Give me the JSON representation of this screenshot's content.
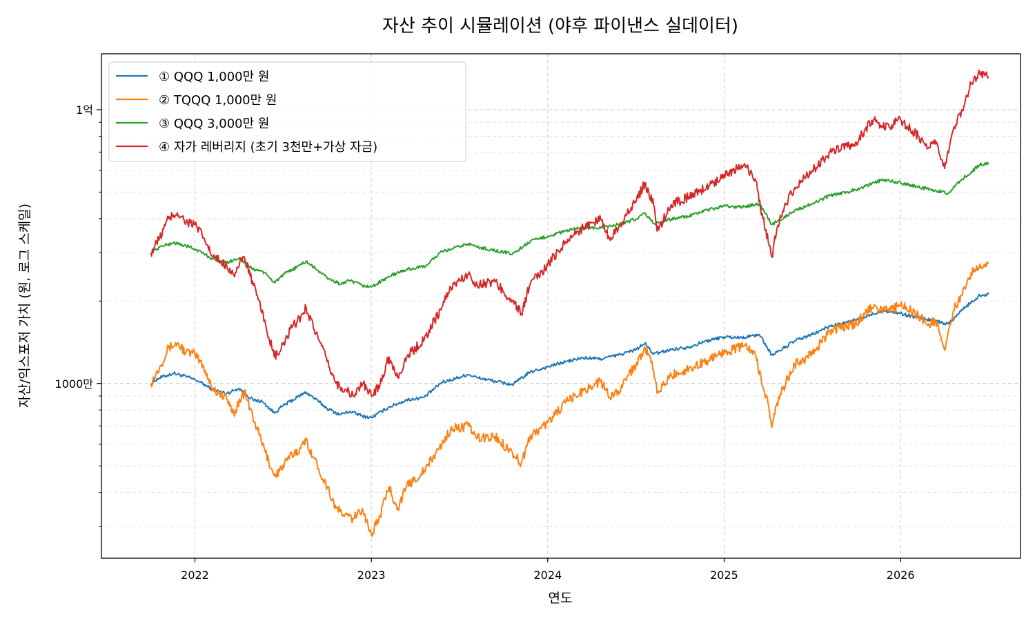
{
  "chart_data": {
    "type": "line",
    "title": "자산 추이 시뮬레이션 (야후 파이낸스 실데이터)",
    "xlabel": "연도",
    "ylabel": "자산/익스포저 가치 (원, 로그 스케일)",
    "y_scale": "log",
    "xlim": [
      2021.47,
      2026.68
    ],
    "ylim": [
      2300000,
      160000000
    ],
    "grid": true,
    "grid_style": "dashed",
    "legend_position": "top-left",
    "x_ticks": [
      {
        "value": 2022,
        "label": "2022"
      },
      {
        "value": 2023,
        "label": "2023"
      },
      {
        "value": 2024,
        "label": "2024"
      },
      {
        "value": 2025,
        "label": "2025"
      },
      {
        "value": 2026,
        "label": "2026"
      }
    ],
    "y_ticks": [
      {
        "value": 10000000,
        "label": "1000만"
      },
      {
        "value": 100000000,
        "label": "1억"
      }
    ],
    "series": [
      {
        "name": "① QQQ 1,000만 원",
        "color": "#1f77b4",
        "x": [
          2021.75,
          2021.8,
          2021.88,
          2021.95,
          2022.02,
          2022.1,
          2022.18,
          2022.25,
          2022.33,
          2022.38,
          2022.45,
          2022.5,
          2022.58,
          2022.63,
          2022.7,
          2022.75,
          2022.82,
          2022.88,
          2022.95,
          2023.0,
          2023.1,
          2023.2,
          2023.3,
          2023.4,
          2023.45,
          2023.55,
          2023.6,
          2023.7,
          2023.8,
          2023.9,
          2024.0,
          2024.1,
          2024.2,
          2024.3,
          2024.4,
          2024.5,
          2024.55,
          2024.6,
          2024.7,
          2024.8,
          2024.9,
          2025.0,
          2025.1,
          2025.2,
          2025.27,
          2025.3,
          2025.4,
          2025.5,
          2025.6,
          2025.7,
          2025.8,
          2025.9,
          2026.0,
          2026.1,
          2026.2,
          2026.27,
          2026.35,
          2026.45,
          2026.5
        ],
        "values": [
          10000000,
          10500000,
          10900000,
          10600000,
          10200000,
          9500000,
          9200000,
          9600000,
          8700000,
          8600000,
          7800000,
          8300000,
          8900000,
          9300000,
          8600000,
          8100000,
          7700000,
          7900000,
          7600000,
          7500000,
          8200000,
          8700000,
          8900000,
          10100000,
          10300000,
          10800000,
          10500000,
          10200000,
          9900000,
          11000000,
          11500000,
          12000000,
          12400000,
          12300000,
          12700000,
          13300000,
          14000000,
          12800000,
          13300000,
          13600000,
          14300000,
          14800000,
          14700000,
          15100000,
          12700000,
          13000000,
          14300000,
          15100000,
          16200000,
          16700000,
          17500000,
          18500000,
          18000000,
          17400000,
          16900000,
          16500000,
          18600000,
          21000000,
          21200000
        ]
      },
      {
        "name": "② TQQQ 1,000만 원",
        "color": "#ff7f0e",
        "x": [
          2021.75,
          2021.8,
          2021.85,
          2021.9,
          2021.95,
          2022.0,
          2022.05,
          2022.1,
          2022.18,
          2022.22,
          2022.28,
          2022.35,
          2022.4,
          2022.45,
          2022.48,
          2022.55,
          2022.6,
          2022.63,
          2022.7,
          2022.75,
          2022.8,
          2022.85,
          2022.9,
          2022.95,
          2023.0,
          2023.05,
          2023.1,
          2023.15,
          2023.2,
          2023.3,
          2023.4,
          2023.45,
          2023.55,
          2023.6,
          2023.7,
          2023.8,
          2023.85,
          2023.9,
          2024.0,
          2024.1,
          2024.2,
          2024.3,
          2024.35,
          2024.4,
          2024.45,
          2024.5,
          2024.55,
          2024.6,
          2024.62,
          2024.7,
          2024.8,
          2024.9,
          2025.0,
          2025.05,
          2025.12,
          2025.18,
          2025.22,
          2025.25,
          2025.27,
          2025.3,
          2025.35,
          2025.4,
          2025.5,
          2025.6,
          2025.7,
          2025.75,
          2025.8,
          2025.85,
          2025.9,
          2025.95,
          2026.0,
          2026.1,
          2026.15,
          2026.2,
          2026.25,
          2026.3,
          2026.35,
          2026.4,
          2026.45,
          2026.5
        ],
        "values": [
          10000000,
          11500000,
          13500000,
          14000000,
          13000000,
          12800000,
          11500000,
          9600000,
          8800000,
          7800000,
          9300000,
          6900000,
          5600000,
          4600000,
          4800000,
          5500000,
          5800000,
          6200000,
          4900000,
          4200000,
          3500000,
          3300000,
          3200000,
          3500000,
          2800000,
          3300000,
          4200000,
          3500000,
          4200000,
          4800000,
          6000000,
          6800000,
          7000000,
          6300000,
          6400000,
          5600000,
          5100000,
          6400000,
          7200000,
          8500000,
          9400000,
          10200000,
          8900000,
          9400000,
          10600000,
          11700000,
          13600000,
          11200000,
          9200000,
          10700000,
          11300000,
          12100000,
          13100000,
          13300000,
          13800000,
          12600000,
          9700000,
          8400000,
          6900000,
          8500000,
          10100000,
          11700000,
          12800000,
          15600000,
          16200000,
          16500000,
          18200000,
          19400000,
          18500000,
          18700000,
          19300000,
          17800000,
          16400000,
          17000000,
          13200000,
          18500000,
          21000000,
          25400000,
          27300000,
          27400000
        ]
      },
      {
        "name": "③ QQQ 3,000만 원",
        "color": "#2ca02c",
        "x": [
          2021.75,
          2021.8,
          2021.88,
          2021.95,
          2022.02,
          2022.1,
          2022.18,
          2022.25,
          2022.33,
          2022.38,
          2022.45,
          2022.5,
          2022.58,
          2022.63,
          2022.7,
          2022.75,
          2022.82,
          2022.88,
          2022.95,
          2023.0,
          2023.1,
          2023.2,
          2023.3,
          2023.4,
          2023.45,
          2023.55,
          2023.6,
          2023.7,
          2023.8,
          2023.9,
          2024.0,
          2024.1,
          2024.2,
          2024.3,
          2024.4,
          2024.5,
          2024.55,
          2024.6,
          2024.7,
          2024.8,
          2024.9,
          2025.0,
          2025.1,
          2025.2,
          2025.27,
          2025.3,
          2025.4,
          2025.5,
          2025.6,
          2025.7,
          2025.8,
          2025.9,
          2026.0,
          2026.1,
          2026.2,
          2026.27,
          2026.35,
          2026.45,
          2026.5
        ],
        "values": [
          30000000,
          31500000,
          32700000,
          31800000,
          30600000,
          28500000,
          27600000,
          28800000,
          26100000,
          25800000,
          23400000,
          24900000,
          26700000,
          27900000,
          25800000,
          24300000,
          23100000,
          23700000,
          22800000,
          22500000,
          24600000,
          26100000,
          26700000,
          30300000,
          30900000,
          32400000,
          31500000,
          30600000,
          29700000,
          33000000,
          34500000,
          36000000,
          37200000,
          36900000,
          38100000,
          39900000,
          42000000,
          38400000,
          39900000,
          40800000,
          42900000,
          44400000,
          44100000,
          45300000,
          38100000,
          39000000,
          42900000,
          45300000,
          48600000,
          50100000,
          52500000,
          55500000,
          54000000,
          52200000,
          50700000,
          49500000,
          55800000,
          63000000,
          63600000
        ]
      },
      {
        "name": "④ 자가 레버리지 (초기 3천만+가상 자금)",
        "color": "#d62728",
        "x": [
          2021.75,
          2021.8,
          2021.85,
          2021.9,
          2021.95,
          2022.0,
          2022.05,
          2022.1,
          2022.18,
          2022.22,
          2022.28,
          2022.35,
          2022.4,
          2022.45,
          2022.48,
          2022.55,
          2022.6,
          2022.63,
          2022.7,
          2022.75,
          2022.8,
          2022.85,
          2022.9,
          2022.95,
          2023.0,
          2023.05,
          2023.1,
          2023.15,
          2023.2,
          2023.3,
          2023.4,
          2023.45,
          2023.55,
          2023.6,
          2023.7,
          2023.8,
          2023.85,
          2023.9,
          2024.0,
          2024.1,
          2024.2,
          2024.3,
          2024.35,
          2024.4,
          2024.45,
          2024.5,
          2024.55,
          2024.6,
          2024.62,
          2024.7,
          2024.8,
          2024.9,
          2025.0,
          2025.05,
          2025.12,
          2025.18,
          2025.22,
          2025.25,
          2025.27,
          2025.3,
          2025.35,
          2025.4,
          2025.5,
          2025.6,
          2025.7,
          2025.75,
          2025.8,
          2025.85,
          2025.9,
          2025.95,
          2026.0,
          2026.1,
          2026.15,
          2026.2,
          2026.25,
          2026.3,
          2026.35,
          2026.4,
          2026.45,
          2026.5
        ],
        "values": [
          30000000,
          34000000,
          40000000,
          42000000,
          39000000,
          38000000,
          34000000,
          29000000,
          27000000,
          25000000,
          29000000,
          21000000,
          16500000,
          12500000,
          13000000,
          16000000,
          17500000,
          19000000,
          14500000,
          12000000,
          10000000,
          9500000,
          9000000,
          10000000,
          9000000,
          10000000,
          12500000,
          10500000,
          12500000,
          14500000,
          19000000,
          22500000,
          25000000,
          23000000,
          23500000,
          20000000,
          18000000,
          23000000,
          27000000,
          33000000,
          37000000,
          40000000,
          34000000,
          37000000,
          42000000,
          46000000,
          54000000,
          45000000,
          36000000,
          45000000,
          48000000,
          52000000,
          58000000,
          60000000,
          62000000,
          55000000,
          40000000,
          33000000,
          29000000,
          37000000,
          45000000,
          52000000,
          60000000,
          70000000,
          73000000,
          76000000,
          85000000,
          92000000,
          86000000,
          88000000,
          92000000,
          80000000,
          72000000,
          75000000,
          61000000,
          85000000,
          100000000,
          125000000,
          135000000,
          132000000
        ]
      }
    ]
  }
}
